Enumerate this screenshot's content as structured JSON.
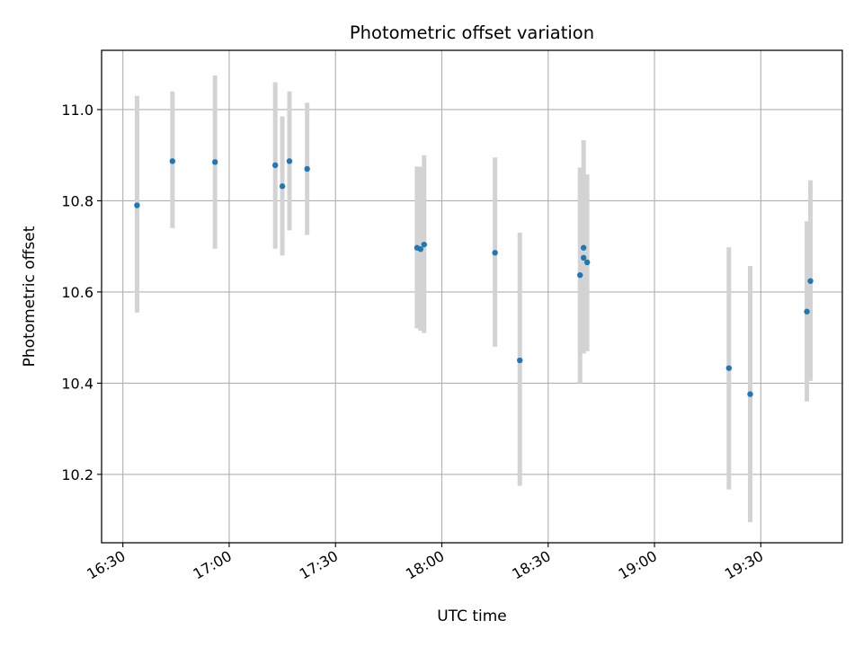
{
  "chart_data": {
    "type": "scatter",
    "title": "Photometric offset variation",
    "xlabel": "UTC time",
    "ylabel": "Photometric offset",
    "x_ticks": [
      "16:30",
      "17:00",
      "17:30",
      "18:00",
      "18:30",
      "19:00",
      "19:30"
    ],
    "y_ticks": [
      "10.2",
      "10.4",
      "10.6",
      "10.8",
      "11.0"
    ],
    "xlim": [
      "16:24",
      "19:53"
    ],
    "ylim": [
      10.05,
      11.13
    ],
    "grid": true,
    "colors": {
      "point": "#1f77b4",
      "errorbar": "#d3d3d3",
      "grid": "#b0b0b0"
    },
    "points": [
      {
        "x": "16:34",
        "y": 10.79,
        "ylow": 10.555,
        "yhigh": 11.03
      },
      {
        "x": "16:44",
        "y": 10.887,
        "ylow": 10.74,
        "yhigh": 11.04
      },
      {
        "x": "16:56",
        "y": 10.885,
        "ylow": 10.695,
        "yhigh": 11.075
      },
      {
        "x": "17:13",
        "y": 10.878,
        "ylow": 10.695,
        "yhigh": 11.06
      },
      {
        "x": "17:15",
        "y": 10.832,
        "ylow": 10.68,
        "yhigh": 10.985
      },
      {
        "x": "17:17",
        "y": 10.887,
        "ylow": 10.735,
        "yhigh": 11.04
      },
      {
        "x": "17:22",
        "y": 10.87,
        "ylow": 10.725,
        "yhigh": 11.015
      },
      {
        "x": "17:53",
        "y": 10.697,
        "ylow": 10.52,
        "yhigh": 10.875
      },
      {
        "x": "17:54",
        "y": 10.694,
        "ylow": 10.515,
        "yhigh": 10.875
      },
      {
        "x": "17:55",
        "y": 10.704,
        "ylow": 10.51,
        "yhigh": 10.9
      },
      {
        "x": "18:15",
        "y": 10.686,
        "ylow": 10.48,
        "yhigh": 10.895
      },
      {
        "x": "18:22",
        "y": 10.45,
        "ylow": 10.175,
        "yhigh": 10.73
      },
      {
        "x": "18:39",
        "y": 10.637,
        "ylow": 10.4,
        "yhigh": 10.873
      },
      {
        "x": "18:40",
        "y": 10.697,
        "ylow": 10.465,
        "yhigh": 10.933
      },
      {
        "x": "18:40",
        "y": 10.675,
        "ylow": 10.49,
        "yhigh": 10.86
      },
      {
        "x": "18:41",
        "y": 10.665,
        "ylow": 10.47,
        "yhigh": 10.858
      },
      {
        "x": "19:21",
        "y": 10.433,
        "ylow": 10.167,
        "yhigh": 10.698
      },
      {
        "x": "19:27",
        "y": 10.376,
        "ylow": 10.095,
        "yhigh": 10.657
      },
      {
        "x": "19:43",
        "y": 10.557,
        "ylow": 10.36,
        "yhigh": 10.755
      },
      {
        "x": "19:44",
        "y": 10.624,
        "ylow": 10.405,
        "yhigh": 10.845
      }
    ]
  }
}
